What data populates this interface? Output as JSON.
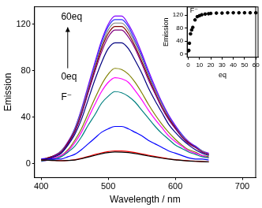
{
  "chart_data": [
    {
      "type": "line",
      "xlabel": "Wavelength / nm",
      "ylabel": "Emission",
      "annotations": [
        "60eq",
        "0eq",
        "F⁻"
      ],
      "grid": false,
      "xlim": [
        390,
        720
      ],
      "xticks": [
        400,
        500,
        600,
        700
      ],
      "ylim": [
        -12,
        135
      ],
      "yticks": [
        0,
        40,
        80,
        120
      ],
      "x": [
        400,
        410,
        420,
        430,
        440,
        450,
        460,
        470,
        480,
        490,
        500,
        510,
        520,
        530,
        540,
        550,
        560,
        570,
        580,
        590,
        600,
        610,
        620,
        630,
        640,
        650
      ],
      "series": [
        {
          "color": "#000000",
          "values": [
            3.2,
            2.9,
            2.7,
            2.5,
            2.7,
            3.1,
            4.2,
            5.7,
            7.1,
            8.5,
            9.5,
            10,
            9.9,
            9.5,
            8.7,
            7.7,
            6.6,
            5.6,
            4.7,
            3.9,
            3.3,
            2.7,
            2.3,
            2,
            1.7,
            1.5
          ]
        },
        {
          "color": "#ff0000",
          "values": [
            3.2,
            2.9,
            2.7,
            2.6,
            2.8,
            3.3,
            4.6,
            6.2,
            7.8,
            9.3,
            10.4,
            11,
            10.9,
            10.4,
            9.5,
            8.4,
            7.2,
            6.1,
            5.1,
            4.2,
            3.5,
            2.9,
            2.4,
            2.1,
            1.8,
            1.6
          ]
        },
        {
          "color": "#0000ff",
          "values": [
            4,
            4,
            4,
            4,
            6,
            8,
            12,
            17,
            22,
            27,
            30,
            32,
            32,
            30,
            27,
            24,
            20,
            17,
            14,
            11,
            9,
            7,
            5,
            4,
            4,
            3
          ]
        },
        {
          "color": "#008080",
          "values": [
            2,
            3,
            4,
            6,
            10,
            15,
            23,
            33,
            42,
            52,
            58,
            62,
            61,
            58,
            53,
            46,
            39,
            32,
            26,
            21,
            16,
            13,
            10,
            8,
            6,
            5
          ]
        },
        {
          "color": "#ff00ff",
          "values": [
            2,
            3,
            5,
            7,
            11,
            18,
            27,
            39,
            51,
            62,
            70,
            74,
            73,
            70,
            63,
            55,
            46,
            38,
            31,
            24,
            19,
            15,
            11,
            9,
            7,
            5
          ]
        },
        {
          "color": "#808000",
          "values": [
            3,
            3,
            5,
            7,
            12,
            20,
            30,
            43,
            56,
            68,
            77,
            82,
            81,
            77,
            70,
            61,
            51,
            42,
            34,
            27,
            21,
            16,
            12,
            10,
            7,
            6
          ]
        },
        {
          "color": "#000080",
          "values": [
            3,
            4,
            6,
            9,
            16,
            25,
            38,
            55,
            72,
            87,
            99,
            104,
            104,
            99,
            89,
            78,
            65,
            54,
            44,
            34,
            27,
            21,
            16,
            12,
            9,
            7
          ]
        },
        {
          "color": "#800080",
          "values": [
            3,
            4,
            7,
            10,
            17,
            27,
            42,
            61,
            79,
            96,
            109,
            115,
            115,
            109,
            99,
            86,
            72,
            60,
            48,
            38,
            30,
            23,
            17,
            14,
            10,
            8
          ]
        },
        {
          "color": "#800000",
          "values": [
            3,
            5,
            7,
            10,
            18,
            28,
            43,
            62,
            81,
            99,
            112,
            118,
            118,
            112,
            101,
            88,
            74,
            61,
            49,
            39,
            31,
            23,
            18,
            14,
            10,
            8
          ]
        },
        {
          "color": "#808080",
          "values": [
            3,
            5,
            7,
            11,
            18,
            29,
            45,
            64,
            83,
            101,
            115,
            121,
            121,
            115,
            104,
            91,
            76,
            63,
            51,
            40,
            31,
            24,
            18,
            14,
            11,
            8
          ]
        },
        {
          "color": "#3030ff",
          "values": [
            3,
            5,
            7,
            11,
            18,
            30,
            46,
            65,
            85,
            104,
            118,
            124,
            124,
            118,
            106,
            93,
            78,
            64,
            52,
            41,
            32,
            25,
            18,
            15,
            11,
            8
          ]
        },
        {
          "color": "#8000ff",
          "values": [
            4,
            5,
            7,
            11,
            19,
            30,
            47,
            67,
            87,
            106,
            120,
            127,
            127,
            120,
            109,
            95,
            80,
            66,
            53,
            42,
            33,
            25,
            19,
            15,
            11,
            9
          ]
        }
      ]
    },
    {
      "type": "scatter",
      "xlabel": "eq",
      "ylabel": "Emission",
      "annotations": [
        "F⁻"
      ],
      "grid": false,
      "color": "#000000",
      "marker": "circle",
      "xlim": [
        -1,
        62
      ],
      "xticks": [
        0,
        10,
        20,
        30,
        40,
        50,
        60
      ],
      "ylim": [
        -10,
        145
      ],
      "yticks": [
        0,
        40,
        80,
        120
      ],
      "x": [
        0,
        0.5,
        1,
        2,
        3,
        4,
        6,
        8,
        10,
        12,
        15,
        18,
        20,
        25,
        30,
        35,
        40,
        45,
        50,
        55,
        60
      ],
      "values": [
        10,
        11,
        33,
        62,
        74,
        82,
        105,
        115,
        118,
        121,
        123,
        124,
        125,
        126,
        126,
        127,
        127,
        127,
        127,
        127,
        127
      ]
    }
  ]
}
